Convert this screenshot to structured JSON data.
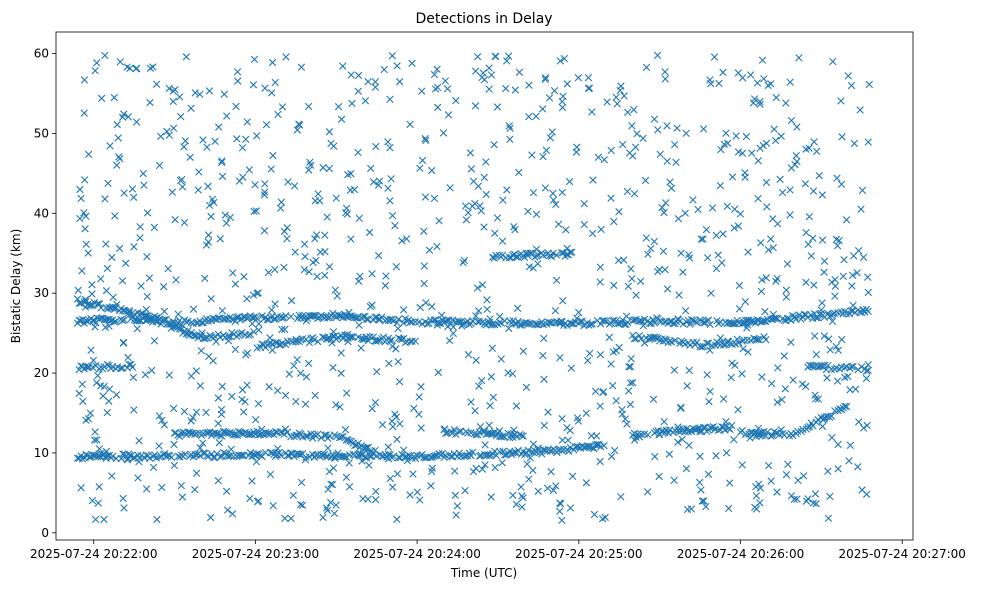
{
  "chart_data": {
    "type": "scatter",
    "title": "Detections in Delay",
    "xlabel": "Time (UTC)",
    "ylabel": "Bistatic Delay (km)",
    "x_axis_type": "time",
    "xlim": [
      "2025-07-24 20:21:46",
      "2025-07-24 20:27:04"
    ],
    "ylim": [
      -0.9,
      62.7
    ],
    "x_ticks": [
      "2025-07-24 20:22:00",
      "2025-07-24 20:23:00",
      "2025-07-24 20:24:00",
      "2025-07-24 20:25:00",
      "2025-07-24 20:26:00",
      "2025-07-24 20:27:00"
    ],
    "y_ticks": [
      0,
      10,
      20,
      30,
      40,
      50,
      60
    ],
    "marker": "x",
    "grid": false,
    "color": "#1f77b4",
    "tracks": [
      {
        "x": [
          "2025-07-24 20:21:54",
          "2025-07-24 20:22:30",
          "2025-07-24 20:23:00",
          "2025-07-24 20:23:30",
          "2025-07-24 20:24:00",
          "2025-07-24 20:24:30",
          "2025-07-24 20:25:00",
          "2025-07-24 20:25:30",
          "2025-07-24 20:26:00",
          "2025-07-24 20:26:48"
        ],
        "y": [
          29.0,
          26.3,
          26.9,
          27.2,
          26.4,
          26.3,
          26.2,
          26.5,
          26.3,
          27.8
        ]
      },
      {
        "x": [
          "2025-07-24 20:21:54",
          "2025-07-24 20:22:20",
          "2025-07-24 20:22:40",
          "2025-07-24 20:23:00"
        ],
        "y": [
          26.5,
          26.8,
          24.5,
          25.0
        ]
      },
      {
        "x": [
          "2025-07-24 20:23:00",
          "2025-07-24 20:23:30",
          "2025-07-24 20:24:00"
        ],
        "y": [
          23.3,
          24.5,
          24.0
        ]
      },
      {
        "x": [
          "2025-07-24 20:25:20",
          "2025-07-24 20:25:45",
          "2025-07-24 20:26:10"
        ],
        "y": [
          24.6,
          23.5,
          24.3
        ]
      },
      {
        "x": [
          "2025-07-24 20:21:54",
          "2025-07-24 20:22:15"
        ],
        "y": [
          20.6,
          20.9
        ]
      },
      {
        "x": [
          "2025-07-24 20:26:25",
          "2025-07-24 20:26:48"
        ],
        "y": [
          20.8,
          20.5
        ]
      },
      {
        "x": [
          "2025-07-24 20:24:28",
          "2025-07-24 20:24:58"
        ],
        "y": [
          34.6,
          34.9
        ]
      },
      {
        "x": [
          "2025-07-24 20:22:30",
          "2025-07-24 20:23:00",
          "2025-07-24 20:23:30"
        ],
        "y": [
          12.3,
          12.5,
          12.0
        ]
      },
      {
        "x": [
          "2025-07-24 20:23:30",
          "2025-07-24 20:23:45"
        ],
        "y": [
          12.2,
          10.0
        ]
      },
      {
        "x": [
          "2025-07-24 20:24:10",
          "2025-07-24 20:24:30",
          "2025-07-24 20:24:40"
        ],
        "y": [
          12.7,
          12.3,
          12.0
        ]
      },
      {
        "x": [
          "2025-07-24 20:25:20",
          "2025-07-24 20:25:40",
          "2025-07-24 20:25:58"
        ],
        "y": [
          12.2,
          12.8,
          13.2
        ]
      },
      {
        "x": [
          "2025-07-24 20:26:00",
          "2025-07-24 20:26:20",
          "2025-07-24 20:26:40"
        ],
        "y": [
          12.5,
          12.3,
          16.0
        ]
      },
      {
        "x": [
          "2025-07-24 20:21:54",
          "2025-07-24 20:23:00",
          "2025-07-24 20:24:00",
          "2025-07-24 20:24:50",
          "2025-07-24 20:25:10"
        ],
        "y": [
          9.5,
          9.8,
          9.6,
          10.2,
          11.0
        ]
      }
    ]
  }
}
